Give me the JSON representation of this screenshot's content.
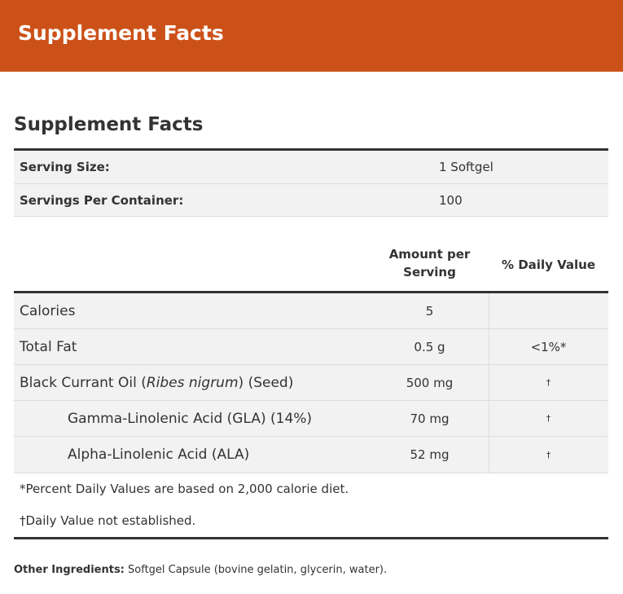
{
  "header": {
    "title": "Supplement Facts"
  },
  "facts": {
    "heading": "Supplement Facts",
    "serving": [
      {
        "label": "Serving Size:",
        "value": "1 Softgel"
      },
      {
        "label": "Servings Per Container:",
        "value": "100"
      }
    ],
    "columns": {
      "amount": "Amount per Serving",
      "daily_value": "% Daily Value"
    },
    "rows": [
      {
        "name": "Calories",
        "amount": "5",
        "dv": ""
      },
      {
        "name": "Total Fat",
        "amount": "0.5 g",
        "dv": "<1%*"
      },
      {
        "name_before": "Black Currant Oil (",
        "name_italic": "Ribes nigrum",
        "name_after": ") (Seed)",
        "amount": "500 mg",
        "dv": "†"
      },
      {
        "name": "Gamma-Linolenic Acid (GLA) (14%)",
        "amount": "70 mg",
        "dv": "†"
      },
      {
        "name": "Alpha-Linolenic Acid (ALA)",
        "amount": "52 mg",
        "dv": "†"
      }
    ],
    "footnotes": [
      "*Percent Daily Values are based on 2,000 calorie diet.",
      "†Daily Value not established."
    ]
  },
  "other_ingredients": {
    "label": "Other Ingredients:",
    "text": "Softgel Capsule (bovine gelatin, glycerin, water)."
  }
}
